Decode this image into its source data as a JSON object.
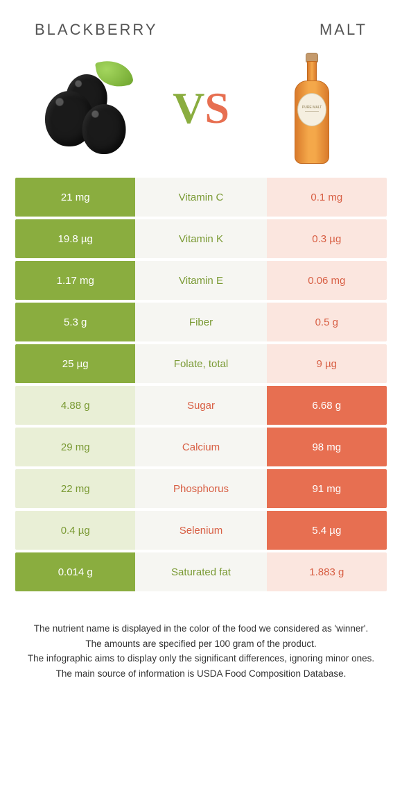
{
  "colors": {
    "left_strong": "#8aad3f",
    "left_soft": "#e9efd6",
    "right_strong": "#e76f51",
    "right_soft": "#fbe6df",
    "mid_bg": "#f6f6f2",
    "nutrient_left_text": "#7a9a34",
    "nutrient_right_text": "#d85f44"
  },
  "header": {
    "left_title": "BLACKBERRY",
    "right_title": "MALT"
  },
  "hero": {
    "vs_v": "V",
    "vs_s": "S",
    "bottle_label_line1": "PURE MALT",
    "bottle_label_line2": "————"
  },
  "rows": [
    {
      "left": "21 mg",
      "name": "Vitamin C",
      "right": "0.1 mg",
      "winner": "left"
    },
    {
      "left": "19.8 µg",
      "name": "Vitamin K",
      "right": "0.3 µg",
      "winner": "left"
    },
    {
      "left": "1.17 mg",
      "name": "Vitamin E",
      "right": "0.06 mg",
      "winner": "left"
    },
    {
      "left": "5.3 g",
      "name": "Fiber",
      "right": "0.5 g",
      "winner": "left"
    },
    {
      "left": "25 µg",
      "name": "Folate, total",
      "right": "9 µg",
      "winner": "left"
    },
    {
      "left": "4.88 g",
      "name": "Sugar",
      "right": "6.68 g",
      "winner": "right"
    },
    {
      "left": "29 mg",
      "name": "Calcium",
      "right": "98 mg",
      "winner": "right"
    },
    {
      "left": "22 mg",
      "name": "Phosphorus",
      "right": "91 mg",
      "winner": "right"
    },
    {
      "left": "0.4 µg",
      "name": "Selenium",
      "right": "5.4 µg",
      "winner": "right"
    },
    {
      "left": "0.014 g",
      "name": "Saturated fat",
      "right": "1.883 g",
      "winner": "left"
    }
  ],
  "footer": {
    "l1": "The nutrient name is displayed in the color of the food we considered as 'winner'.",
    "l2": "The amounts are specified per 100 gram of the product.",
    "l3": "The infographic aims to display only the significant differences, ignoring minor ones.",
    "l4": "The main source of information is USDA Food Composition Database."
  }
}
